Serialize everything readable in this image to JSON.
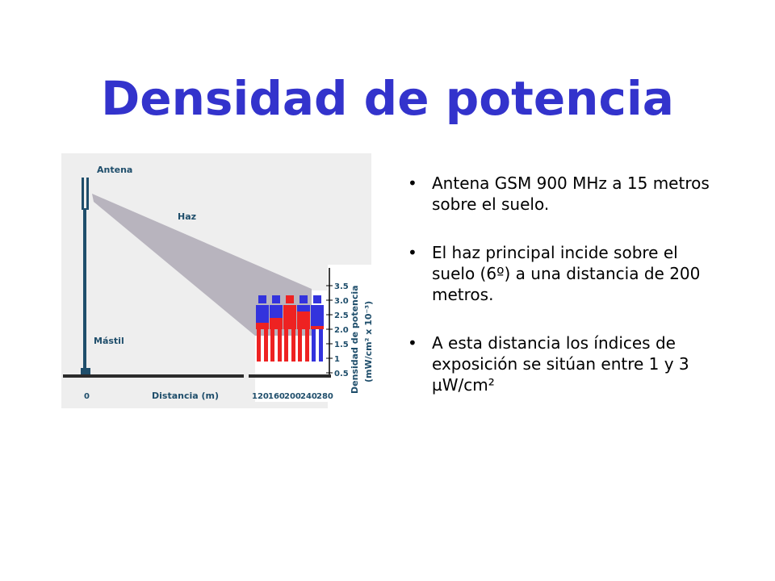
{
  "slide": {
    "title": "Densidad de potencia"
  },
  "diagram": {
    "label_antenna": "Antena",
    "label_beam": "Haz",
    "label_mast": "Mástil",
    "label_origin": "0",
    "label_distance": "Distancia (m)",
    "distance_ticks": [
      "120",
      "160",
      "200",
      "240",
      "280"
    ],
    "density_ticks": [
      "3.5",
      "3.0",
      "2.5",
      "2.0",
      "1.5",
      "1",
      "0.5"
    ],
    "axis_title_line1": "Densidad de potencia",
    "axis_title_line2": "(mW/cm² x 10⁻³)",
    "colors": {
      "mast": "#1f4e6b",
      "beam": "#b8b4be",
      "figure_blue": "#3333dd",
      "figure_red": "#ee2222",
      "panel_bg": "#eeeeee"
    }
  },
  "bullets": [
    {
      "marker": "•",
      "text": "Antena GSM 900 MHz a 15 metros sobre el suelo."
    },
    {
      "marker": "•",
      "text": "El haz principal incide sobre el suelo (6º) a una distancia de 200 metros."
    },
    {
      "marker": "•",
      "text": "A esta distancia los índices de exposición se sitúan entre 1 y 3 µW/cm²"
    }
  ]
}
